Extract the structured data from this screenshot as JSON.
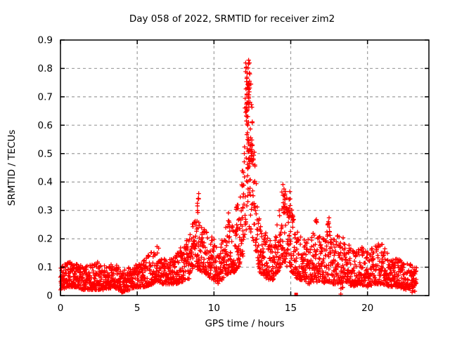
{
  "title": "Day 058 of 2022, SRMTID for receiver zim2",
  "colors": {
    "data": "#ff0000",
    "grid": "#9e9e9e",
    "axis": "#000000",
    "background": "#ffffff",
    "text": "#000000"
  },
  "chart_data": {
    "type": "scatter",
    "title": "Day 058 of 2022, SRMTID for receiver zim2",
    "xlabel": "GPS time / hours",
    "ylabel": "SRMTID / TECUs",
    "xlim": [
      0,
      24
    ],
    "ylim": [
      0,
      0.9
    ],
    "xticks": [
      0,
      5,
      10,
      15,
      20
    ],
    "xtick_labels": [
      "0",
      "5",
      "10",
      "15",
      "20"
    ],
    "yticks": [
      0,
      0.1,
      0.2,
      0.3,
      0.4,
      0.5,
      0.6,
      0.7,
      0.8,
      0.9
    ],
    "ytick_labels": [
      "0",
      "0.1",
      "0.2",
      "0.3",
      "0.4",
      "0.5",
      "0.6",
      "0.7",
      "0.8",
      "0.9"
    ],
    "grid": true,
    "legend": "none",
    "marker": "plus",
    "marker_color": "#ff0000",
    "series_name": "SRMTID",
    "x_start": 0.0,
    "x_end": 23.2,
    "n_points": 2400,
    "seed": 58,
    "skew": 1.6,
    "peak": {
      "x": 12.25,
      "y": 0.82
    },
    "outlier_square": {
      "x": 15.35,
      "y": 0.004
    },
    "envelope": [
      [
        0.0,
        0.02,
        0.11
      ],
      [
        0.5,
        0.03,
        0.12
      ],
      [
        1.0,
        0.03,
        0.13
      ],
      [
        1.5,
        0.02,
        0.1
      ],
      [
        2.0,
        0.02,
        0.11
      ],
      [
        2.5,
        0.02,
        0.12
      ],
      [
        3.0,
        0.02,
        0.1
      ],
      [
        3.5,
        0.03,
        0.12
      ],
      [
        4.0,
        0.01,
        0.09
      ],
      [
        4.5,
        0.02,
        0.1
      ],
      [
        5.0,
        0.03,
        0.11
      ],
      [
        5.5,
        0.03,
        0.13
      ],
      [
        6.0,
        0.04,
        0.16
      ],
      [
        6.3,
        0.05,
        0.18
      ],
      [
        6.6,
        0.04,
        0.14
      ],
      [
        7.0,
        0.04,
        0.13
      ],
      [
        7.5,
        0.04,
        0.15
      ],
      [
        8.0,
        0.05,
        0.18
      ],
      [
        8.4,
        0.06,
        0.22
      ],
      [
        8.7,
        0.1,
        0.27
      ],
      [
        9.0,
        0.09,
        0.26
      ],
      [
        9.3,
        0.08,
        0.24
      ],
      [
        9.6,
        0.07,
        0.22
      ],
      [
        10.0,
        0.05,
        0.2
      ],
      [
        10.3,
        0.04,
        0.16
      ],
      [
        10.6,
        0.06,
        0.22
      ],
      [
        11.0,
        0.08,
        0.27
      ],
      [
        11.3,
        0.08,
        0.25
      ],
      [
        11.6,
        0.1,
        0.3
      ],
      [
        11.9,
        0.14,
        0.42
      ],
      [
        12.0,
        0.2,
        0.75
      ],
      [
        12.2,
        0.25,
        0.83
      ],
      [
        12.4,
        0.22,
        0.78
      ],
      [
        12.6,
        0.18,
        0.55
      ],
      [
        12.8,
        0.12,
        0.38
      ],
      [
        13.0,
        0.08,
        0.28
      ],
      [
        13.4,
        0.06,
        0.22
      ],
      [
        13.8,
        0.05,
        0.18
      ],
      [
        14.2,
        0.08,
        0.28
      ],
      [
        14.5,
        0.12,
        0.4
      ],
      [
        14.8,
        0.1,
        0.34
      ],
      [
        15.1,
        0.08,
        0.3
      ],
      [
        15.4,
        0.06,
        0.24
      ],
      [
        15.8,
        0.05,
        0.2
      ],
      [
        16.2,
        0.04,
        0.2
      ],
      [
        16.6,
        0.05,
        0.24
      ],
      [
        17.0,
        0.04,
        0.2
      ],
      [
        17.4,
        0.05,
        0.26
      ],
      [
        17.8,
        0.04,
        0.2
      ],
      [
        18.2,
        0.04,
        0.22
      ],
      [
        18.6,
        0.05,
        0.2
      ],
      [
        19.0,
        0.03,
        0.16
      ],
      [
        19.5,
        0.04,
        0.18
      ],
      [
        20.0,
        0.03,
        0.15
      ],
      [
        20.5,
        0.04,
        0.19
      ],
      [
        21.0,
        0.04,
        0.18
      ],
      [
        21.5,
        0.03,
        0.14
      ],
      [
        22.0,
        0.03,
        0.13
      ],
      [
        22.5,
        0.02,
        0.12
      ],
      [
        23.2,
        0.03,
        0.1
      ]
    ],
    "spikes": [
      [
        12.18,
        0.6,
        0.83,
        45,
        0.15
      ],
      [
        12.3,
        0.35,
        0.6,
        25,
        0.12
      ],
      [
        12.45,
        0.45,
        0.55,
        8,
        0.05
      ],
      [
        10.95,
        0.24,
        0.3,
        5,
        0.05
      ],
      [
        8.95,
        0.28,
        0.36,
        8,
        0.06
      ],
      [
        11.5,
        0.28,
        0.36,
        6,
        0.08
      ],
      [
        11.85,
        0.3,
        0.44,
        8,
        0.06
      ],
      [
        14.55,
        0.3,
        0.4,
        10,
        0.08
      ],
      [
        14.95,
        0.27,
        0.37,
        8,
        0.08
      ],
      [
        16.65,
        0.22,
        0.28,
        5,
        0.05
      ],
      [
        17.45,
        0.22,
        0.28,
        5,
        0.05
      ],
      [
        18.3,
        0.005,
        0.03,
        4,
        0.1
      ],
      [
        23.0,
        0.01,
        0.04,
        5,
        0.1
      ]
    ]
  }
}
